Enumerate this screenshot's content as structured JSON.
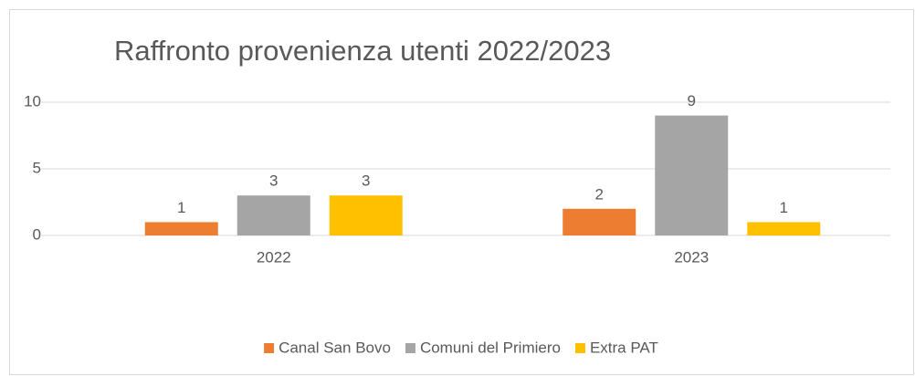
{
  "chart_data": {
    "type": "bar",
    "title": "Raffronto provenienza utenti 2022/2023",
    "categories": [
      "2022",
      "2023"
    ],
    "series": [
      {
        "name": "Canal San Bovo",
        "color": "#ED7D31",
        "values": [
          1,
          2
        ]
      },
      {
        "name": "Comuni del Primiero",
        "color": "#A5A5A5",
        "values": [
          3,
          9
        ]
      },
      {
        "name": "Extra PAT",
        "color": "#FFC000",
        "values": [
          3,
          1
        ]
      }
    ],
    "ylim": [
      0,
      10
    ],
    "yticks": [
      0,
      5,
      10
    ],
    "grid": true,
    "legend": "bottom"
  }
}
